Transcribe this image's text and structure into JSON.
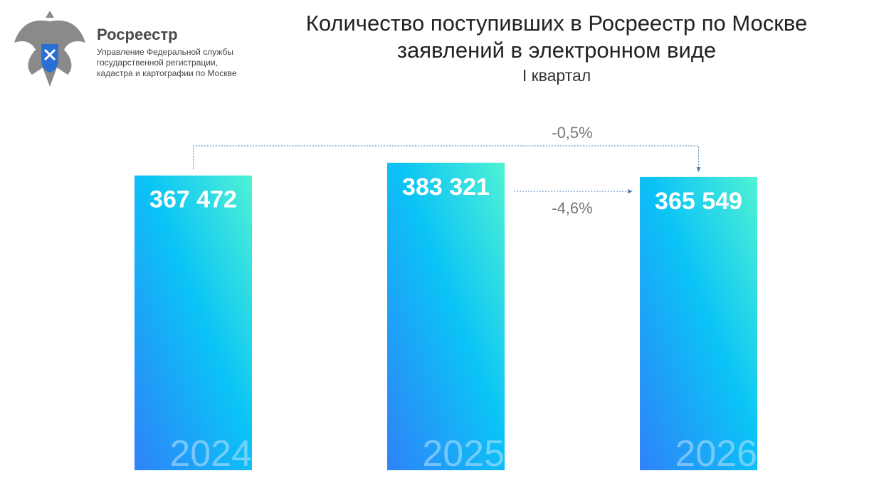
{
  "logo": {
    "name": "Росреестр",
    "subtitle_lines": [
      "Управление Федеральной службы",
      "государственной регистрации,",
      "кадастра и картографии по Москве"
    ]
  },
  "chart_data": {
    "type": "bar",
    "title": "Количество поступивших в Росреестр по Москве заявлений в электронном виде",
    "subtitle": "I квартал",
    "categories": [
      "2024",
      "2025",
      "2026"
    ],
    "values": [
      367472,
      383321,
      365549
    ],
    "value_labels": [
      "367 472",
      "383 321",
      "365 549"
    ],
    "annotations": [
      "-0,5%",
      "-4,6%"
    ],
    "ylim": [
      0,
      400000
    ]
  }
}
